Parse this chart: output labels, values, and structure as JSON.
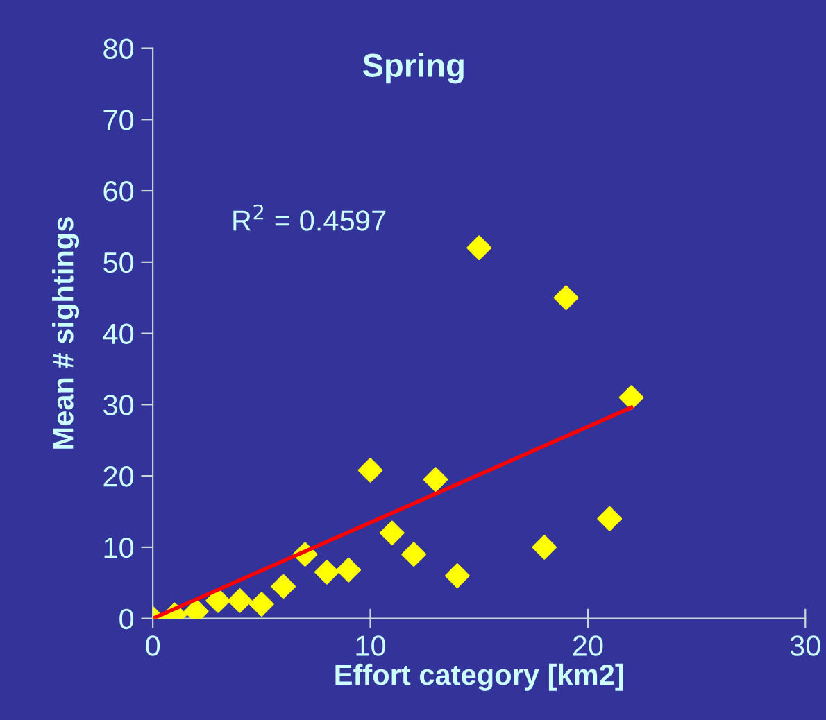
{
  "chart_data": {
    "type": "scatter",
    "title": "Spring",
    "xlabel": "Effort category [km2]",
    "ylabel": "Mean # sightings",
    "annotations": [
      "R$^{2}$ = 0.4597"
    ],
    "xlim": [
      0,
      30
    ],
    "xticks": [
      0,
      10,
      20,
      30
    ],
    "ylim": [
      0,
      80
    ],
    "yticks": [
      0,
      10,
      20,
      30,
      40,
      50,
      60,
      70,
      80
    ],
    "grid": false,
    "legend": false,
    "series": [
      {
        "marker": "diamond",
        "color": "#ffff00",
        "x": [
          0,
          1,
          2,
          3,
          4,
          5,
          6,
          7,
          8,
          9,
          10,
          11,
          12,
          13,
          14,
          15,
          18,
          19,
          21,
          22
        ],
        "values": [
          0,
          0.5,
          1,
          2.5,
          2.5,
          2,
          4.5,
          9,
          6.5,
          6.8,
          20.8,
          12,
          9,
          19.5,
          6,
          52,
          10,
          45,
          14,
          31
        ]
      },
      {
        "type": "line",
        "marker": "none",
        "color": "#ff0000",
        "x": [
          0,
          22
        ],
        "values": [
          0,
          29.6
        ]
      }
    ]
  }
}
